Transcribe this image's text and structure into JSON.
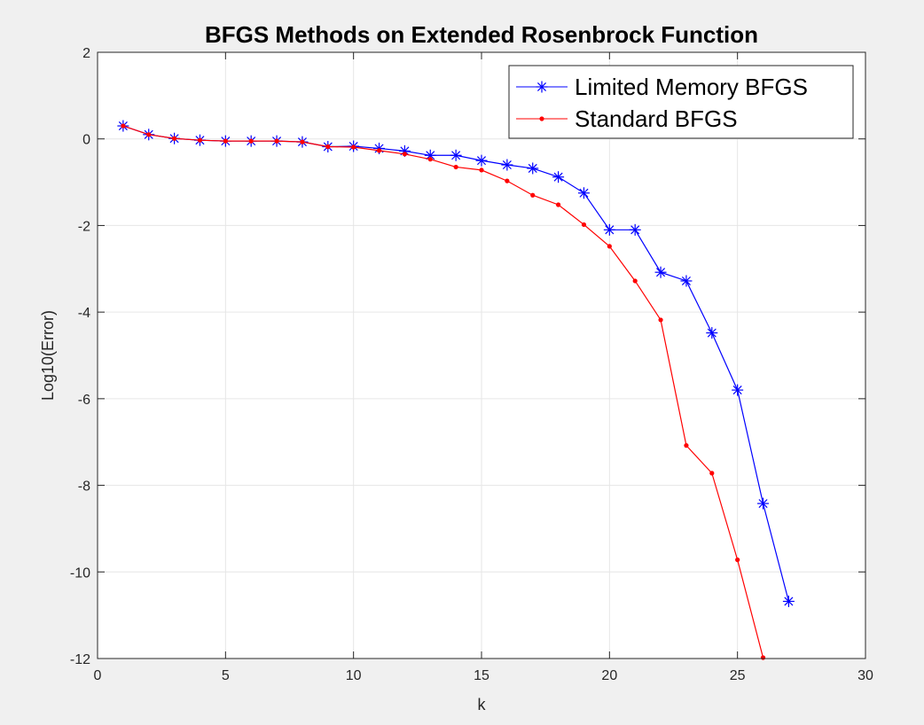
{
  "chart_data": {
    "type": "line",
    "title": "BFGS Methods on Extended Rosenbrock Function",
    "xlabel": "k",
    "ylabel": "Log10(Error)",
    "xlim": [
      0,
      30
    ],
    "ylim": [
      -12,
      2
    ],
    "xticks": [
      0,
      5,
      10,
      15,
      20,
      25,
      30
    ],
    "yticks": [
      2,
      0,
      -2,
      -4,
      -6,
      -8,
      -10,
      -12
    ],
    "xtick_labels": [
      "0",
      "5",
      "10",
      "15",
      "20",
      "25",
      "30"
    ],
    "ytick_labels": [
      "2",
      "0",
      "-2",
      "-4",
      "-6",
      "-8",
      "-10",
      "-12"
    ],
    "grid": true,
    "legend_position": "top-right",
    "series": [
      {
        "name": "Limited Memory BFGS",
        "color": "#0000ff",
        "marker": "asterisk",
        "x": [
          1,
          2,
          3,
          4,
          5,
          6,
          7,
          8,
          9,
          10,
          11,
          12,
          13,
          14,
          15,
          16,
          17,
          18,
          19,
          20,
          21,
          22,
          23,
          24,
          25,
          26,
          27
        ],
        "y": [
          0.3,
          0.1,
          0.01,
          -0.03,
          -0.05,
          -0.05,
          -0.05,
          -0.07,
          -0.18,
          -0.17,
          -0.22,
          -0.28,
          -0.38,
          -0.38,
          -0.5,
          -0.6,
          -0.68,
          -0.88,
          -1.25,
          -2.1,
          -2.1,
          -3.08,
          -3.28,
          -4.48,
          -5.8,
          -8.42,
          -10.68
        ]
      },
      {
        "name": "Standard BFGS",
        "color": "#ff0000",
        "marker": "dot",
        "x": [
          1,
          2,
          3,
          4,
          5,
          6,
          7,
          8,
          9,
          10,
          11,
          12,
          13,
          14,
          15,
          16,
          17,
          18,
          19,
          20,
          21,
          22,
          23,
          24,
          25,
          26
        ],
        "y": [
          0.3,
          0.1,
          0.01,
          -0.03,
          -0.05,
          -0.05,
          -0.05,
          -0.07,
          -0.18,
          -0.19,
          -0.27,
          -0.35,
          -0.47,
          -0.65,
          -0.72,
          -0.97,
          -1.3,
          -1.52,
          -1.98,
          -2.48,
          -3.28,
          -4.18,
          -7.08,
          -7.72,
          -9.72,
          -11.98
        ]
      }
    ]
  }
}
